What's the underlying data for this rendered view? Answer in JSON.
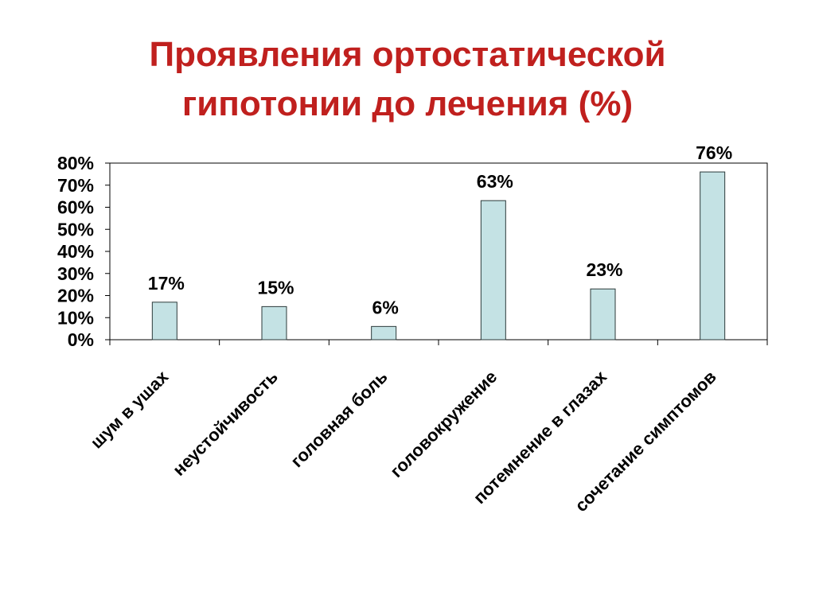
{
  "slide": {
    "title_line1": "Проявления ортостатической",
    "title_line2": "гипотонии до лечения (%)"
  },
  "chart_data": {
    "type": "bar",
    "categories": [
      "шум в ушах",
      "неустойчивость",
      "головная боль",
      "головокружение",
      "потемнение в глазах",
      "сочетание симптомов"
    ],
    "values": [
      17,
      15,
      6,
      63,
      23,
      76
    ],
    "data_labels": [
      "17%",
      "15%",
      "6%",
      "63%",
      "23%",
      "76%"
    ],
    "ylim": [
      0,
      80
    ],
    "yticks": [
      0,
      10,
      20,
      30,
      40,
      50,
      60,
      70,
      80
    ],
    "ytick_labels": [
      "0%",
      "10%",
      "20%",
      "30%",
      "40%",
      "50%",
      "60%",
      "70%",
      "80%"
    ],
    "xlabel": "",
    "ylabel": "",
    "grid": false,
    "legend": "none",
    "colors": {
      "bar_fill": "#c4e2e4",
      "bar_stroke": "#2c3a3a",
      "axis": "#000000",
      "title": "#c0201e"
    }
  }
}
